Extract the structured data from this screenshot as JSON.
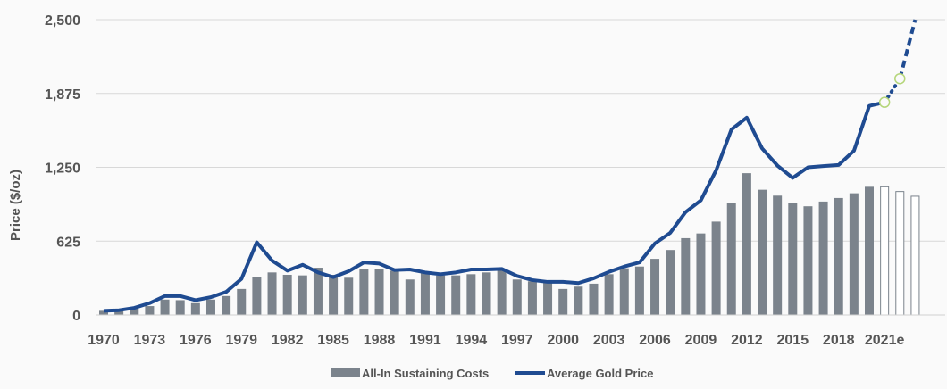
{
  "chart_data": {
    "type": "bar+line",
    "title": "",
    "xlabel": "",
    "ylabel": "Price ($/oz)",
    "ylim": [
      0,
      2500
    ],
    "yticks": [
      "0",
      "625",
      "1,250",
      "1,875",
      "2,500"
    ],
    "ytick_values": [
      0,
      625,
      1250,
      1875,
      2500
    ],
    "grid": true,
    "legend_position": "bottom",
    "x": [
      1970,
      1971,
      1972,
      1973,
      1974,
      1975,
      1976,
      1977,
      1978,
      1979,
      1980,
      1981,
      1982,
      1983,
      1984,
      1985,
      1986,
      1987,
      1988,
      1989,
      1990,
      1991,
      1992,
      1993,
      1994,
      1995,
      1996,
      1997,
      1998,
      1999,
      2000,
      2001,
      2002,
      2003,
      2004,
      2005,
      2006,
      2007,
      2008,
      2009,
      2010,
      2011,
      2012,
      2013,
      2014,
      2015,
      2016,
      2017,
      2018,
      2019,
      2020,
      2021,
      2022,
      2023
    ],
    "xtick_labels": [
      "1970",
      "1973",
      "1976",
      "1979",
      "1982",
      "1985",
      "1988",
      "1991",
      "1994",
      "1997",
      "2000",
      "2003",
      "2006",
      "2009",
      "2012",
      "2015",
      "2018",
      "2021e"
    ],
    "xtick_years": [
      1970,
      1973,
      1976,
      1979,
      1982,
      1985,
      1988,
      1991,
      1994,
      1997,
      2000,
      2003,
      2006,
      2009,
      2012,
      2015,
      2018,
      2021
    ],
    "series": [
      {
        "name": "All-In Sustaining Costs",
        "type": "bar",
        "color": "#7b838c",
        "values": [
          35,
          40,
          55,
          75,
          130,
          125,
          100,
          130,
          160,
          220,
          320,
          360,
          340,
          335,
          400,
          340,
          315,
          385,
          390,
          375,
          300,
          360,
          335,
          335,
          345,
          360,
          375,
          300,
          285,
          280,
          220,
          240,
          265,
          345,
          395,
          410,
          475,
          550,
          650,
          690,
          790,
          950,
          1200,
          1060,
          1010,
          950,
          920,
          960,
          990,
          1030,
          1085,
          1085,
          1045,
          1005
        ],
        "estimate_from": 2021
      },
      {
        "name": "Average Gold Price",
        "type": "line",
        "color": "#1f4b91",
        "values": [
          35,
          40,
          60,
          100,
          160,
          160,
          125,
          150,
          195,
          305,
          615,
          460,
          375,
          425,
          360,
          320,
          370,
          445,
          435,
          380,
          385,
          360,
          345,
          360,
          385,
          385,
          390,
          330,
          295,
          280,
          280,
          270,
          310,
          365,
          410,
          445,
          605,
          695,
          870,
          970,
          1225,
          1570,
          1670,
          1410,
          1265,
          1160,
          1250,
          1260,
          1270,
          1390,
          1770,
          1800,
          2000,
          2500
        ],
        "projection_from": 2020,
        "marker_color": "#b5d67a"
      }
    ]
  }
}
